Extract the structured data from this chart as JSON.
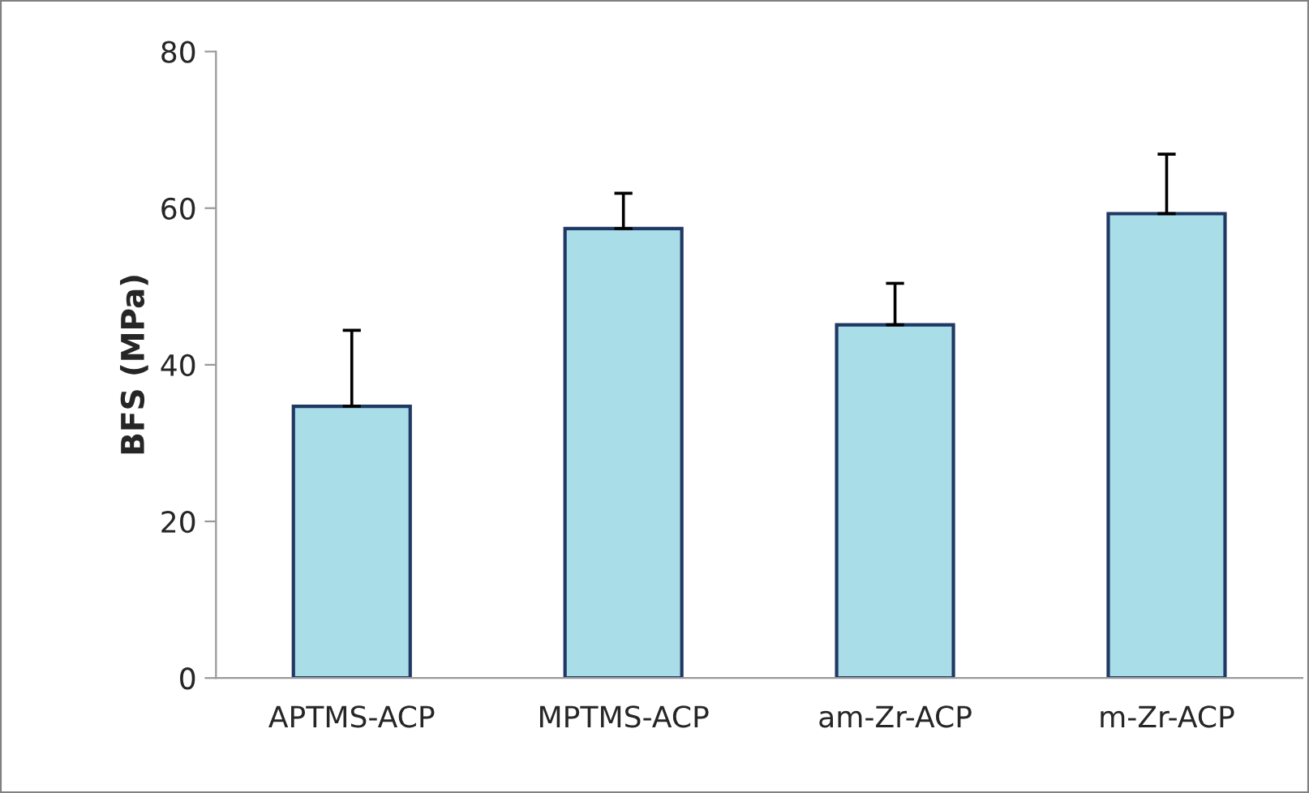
{
  "chart_data": {
    "type": "bar",
    "ylabel": "BFS (MPa)",
    "categories": [
      "APTMS-ACP",
      "MPTMS-ACP",
      "am-Zr-ACP",
      "m-Zr-ACP"
    ],
    "values": [
      34.7,
      57.4,
      45.1,
      59.3
    ],
    "errors": [
      [
        34.7,
        44.4
      ],
      [
        57.4,
        61.9
      ],
      [
        45.1,
        50.4
      ],
      [
        59.3,
        66.9
      ]
    ],
    "color": "#a9dde8",
    "ylim": [
      0,
      80
    ],
    "yticks": [
      0,
      20,
      40,
      60,
      80
    ],
    "grid": false,
    "legend": false
  }
}
